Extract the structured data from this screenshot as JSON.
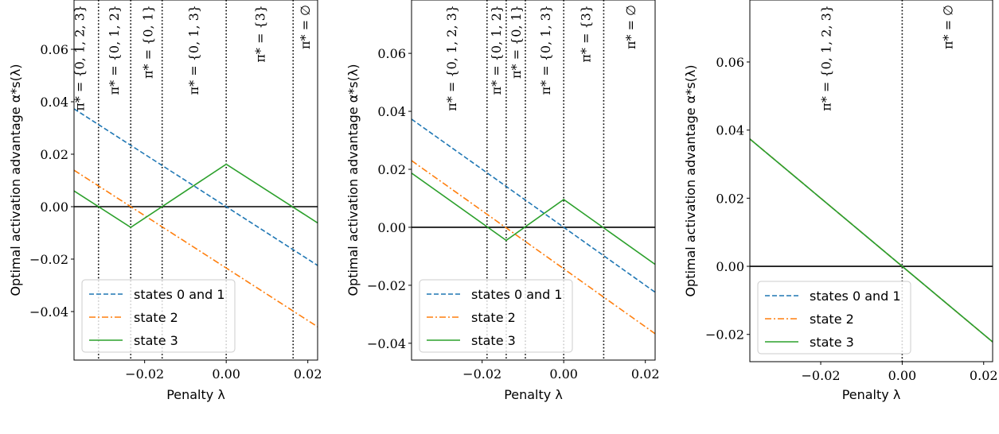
{
  "colors": {
    "states_0_and_1": "#1f77b4",
    "state_2": "#ff7f0e",
    "state_3": "#2ca02c",
    "zero_line": "#000000",
    "regime_lines": "#000000"
  },
  "chart_data": [
    {
      "type": "line",
      "xlabel": "Penalty λ",
      "ylabel": "Optimal activation advantage α*s(λ)",
      "xlim": [
        -0.0373,
        0.0224
      ],
      "ylim": [
        -0.0585,
        0.0788
      ],
      "xticks": [
        -0.02,
        0.0,
        0.02
      ],
      "xtick_labels": [
        "−0.02",
        "0.00",
        "0.02"
      ],
      "yticks": [
        -0.04,
        -0.02,
        0.0,
        0.02,
        0.04,
        0.06
      ],
      "ytick_labels": [
        "−0.04",
        "−0.02",
        "0.00",
        "0.02",
        "0.04",
        "0.06"
      ],
      "grid": false,
      "legend": "lower-left",
      "series": [
        {
          "name": "states 0 and 1",
          "style": "dashed",
          "x": [
            -0.0373,
            0.0224
          ],
          "y": [
            0.0373,
            -0.0224
          ]
        },
        {
          "name": "state 2",
          "style": "dashdot",
          "x": [
            -0.0373,
            0.0224
          ],
          "y": [
            0.0139,
            -0.0458
          ]
        },
        {
          "name": "state 3",
          "style": "solid",
          "x": [
            -0.0373,
            -0.0234,
            0.0,
            0.0224
          ],
          "y": [
            0.006,
            -0.0079,
            0.0162,
            -0.0062
          ]
        }
      ],
      "hline": 0.0,
      "vlines": [
        -0.0313,
        -0.0234,
        -0.0157,
        0.0,
        0.0164
      ],
      "annotations": [
        {
          "x": -0.036,
          "text": "π* = {0, 1, 2, 3}"
        },
        {
          "x": -0.0275,
          "text": "π* = {0, 1, 2}"
        },
        {
          "x": -0.0193,
          "text": "π* = {0, 1}"
        },
        {
          "x": -0.008,
          "text": "π* = {0, 1, 3}"
        },
        {
          "x": 0.0083,
          "text": "π* = {3}"
        },
        {
          "x": 0.0193,
          "text": "π* = ∅"
        }
      ]
    },
    {
      "type": "line",
      "xlabel": "Penalty λ",
      "ylabel": "Optimal activation advantage α*s(λ)",
      "xlim": [
        -0.0373,
        0.0224
      ],
      "ylim": [
        -0.0458,
        0.0784
      ],
      "xticks": [
        -0.02,
        0.0,
        0.02
      ],
      "xtick_labels": [
        "−0.02",
        "0.00",
        "0.02"
      ],
      "yticks": [
        -0.04,
        -0.02,
        0.0,
        0.02,
        0.04,
        0.06
      ],
      "ytick_labels": [
        "−0.04",
        "−0.02",
        "0.00",
        "0.02",
        "0.04",
        "0.06"
      ],
      "grid": false,
      "legend": "lower-left",
      "series": [
        {
          "name": "states 0 and 1",
          "style": "dashed",
          "x": [
            -0.0373,
            0.0224
          ],
          "y": [
            0.0373,
            -0.0224
          ]
        },
        {
          "name": "state 2",
          "style": "dashdot",
          "x": [
            -0.0373,
            0.0224
          ],
          "y": [
            0.023,
            -0.0367
          ]
        },
        {
          "name": "state 3",
          "style": "solid",
          "x": [
            -0.0373,
            -0.0141,
            0.0,
            0.0224
          ],
          "y": [
            0.0187,
            -0.0045,
            0.0096,
            -0.0128
          ]
        }
      ],
      "hline": 0.0,
      "vlines": [
        -0.0188,
        -0.0141,
        -0.0094,
        0.0,
        0.0098
      ],
      "annotations": [
        {
          "x": -0.0275,
          "text": "π* = {0, 1, 2, 3}"
        },
        {
          "x": -0.0166,
          "text": "π* = {0, 1, 2}"
        },
        {
          "x": -0.0117,
          "text": "π* = {0, 1}"
        },
        {
          "x": -0.0045,
          "text": "π* = {0, 1, 3}"
        },
        {
          "x": 0.0053,
          "text": "π* = {3}"
        },
        {
          "x": 0.0164,
          "text": "π* = ∅"
        }
      ]
    },
    {
      "type": "line",
      "xlabel": "Penalty λ",
      "ylabel": "Optimal activation advantage α*s(λ)",
      "xlim": [
        -0.0374,
        0.0222
      ],
      "ylim": [
        -0.028,
        0.0782
      ],
      "xticks": [
        -0.02,
        0.0,
        0.02
      ],
      "xtick_labels": [
        "−0.02",
        "0.00",
        "0.02"
      ],
      "yticks": [
        -0.02,
        0.0,
        0.02,
        0.04,
        0.06
      ],
      "ytick_labels": [
        "−0.02",
        "0.00",
        "0.02",
        "0.04",
        "0.06"
      ],
      "grid": false,
      "legend": "lower-left",
      "series": [
        {
          "name": "states 0 and 1",
          "style": "dashed",
          "x": [
            -0.0374,
            0.0222
          ],
          "y": [
            0.0374,
            -0.0222
          ]
        },
        {
          "name": "state 2",
          "style": "dashdot",
          "x": [
            -0.0374,
            0.0222
          ],
          "y": [
            0.0374,
            -0.0222
          ]
        },
        {
          "name": "state 3",
          "style": "solid",
          "x": [
            -0.0374,
            0.0222
          ],
          "y": [
            0.0374,
            -0.0222
          ]
        }
      ],
      "hline": 0.0,
      "vlines": [
        0.0
      ],
      "annotations": [
        {
          "x": -0.0187,
          "text": "π* = {0, 1, 2, 3}"
        },
        {
          "x": 0.0112,
          "text": "π* = ∅"
        }
      ]
    }
  ]
}
